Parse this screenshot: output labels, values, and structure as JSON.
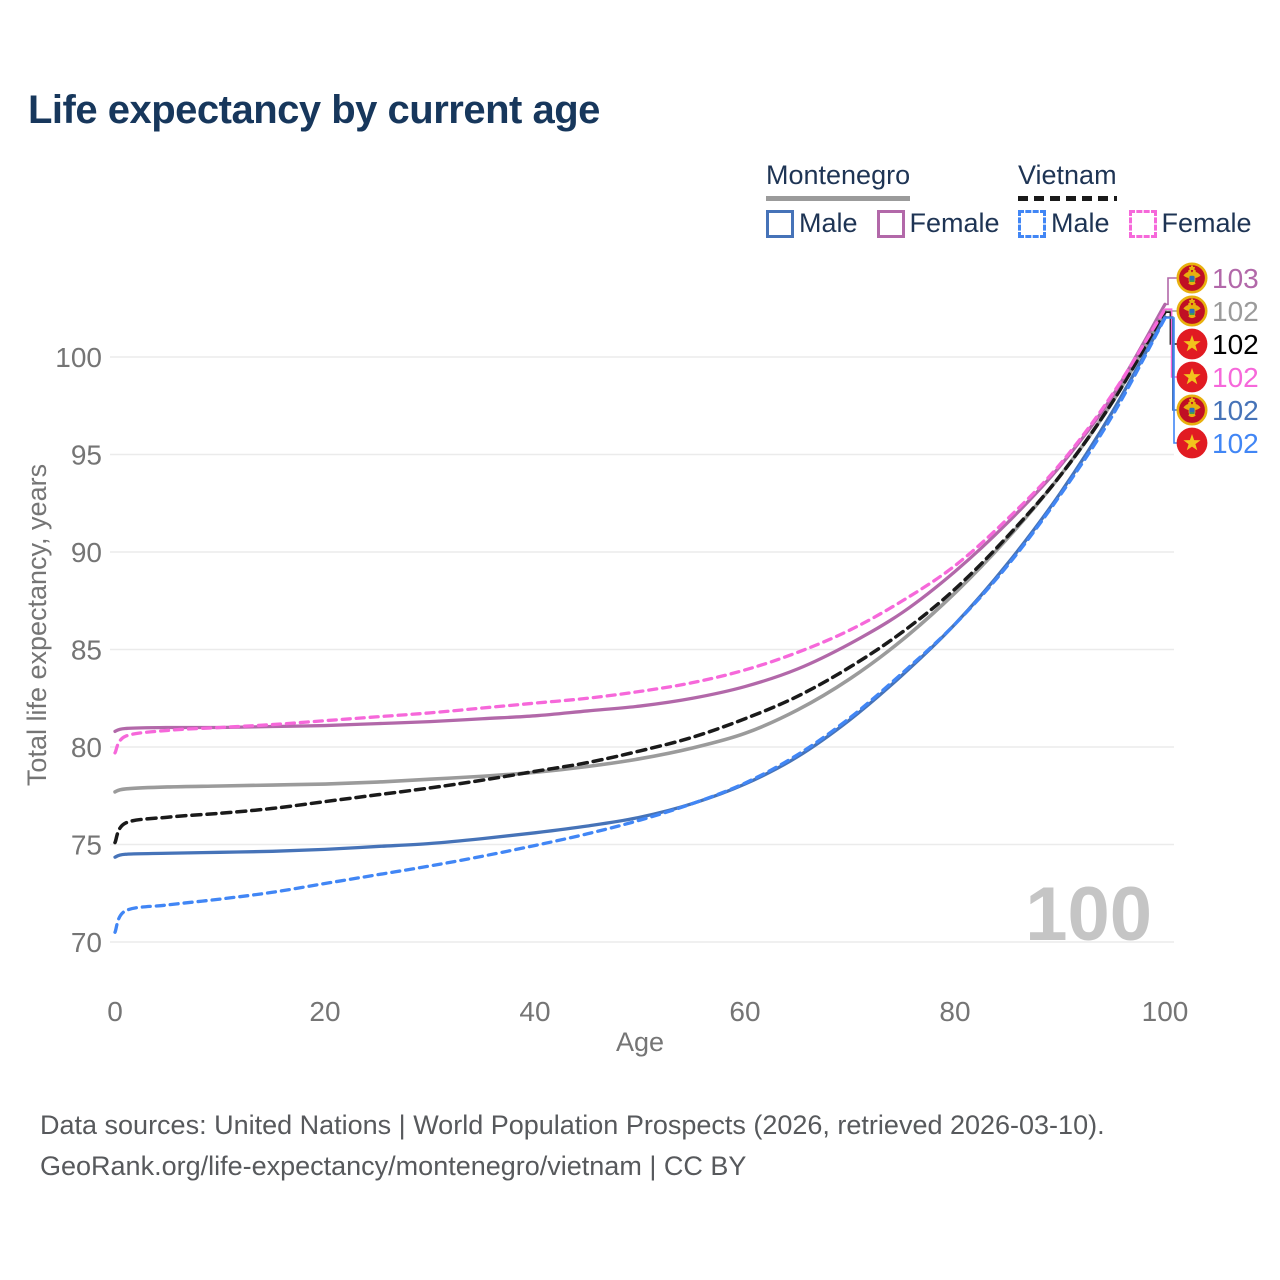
{
  "title": "Life expectancy by current age",
  "legend": {
    "groups": [
      {
        "label": "Montenegro",
        "line_style": "solid",
        "items": [
          {
            "label": "Male",
            "series": "mne_male"
          },
          {
            "label": "Female",
            "series": "mne_female"
          }
        ]
      },
      {
        "label": "Vietnam",
        "line_style": "dashed",
        "items": [
          {
            "label": "Male",
            "series": "vnm_male"
          },
          {
            "label": "Female",
            "series": "vnm_female"
          }
        ]
      }
    ]
  },
  "watermark": "100",
  "footer": {
    "line1": "Data sources: United Nations | World Population Prospects (2026, retrieved 2026-03-10).",
    "line2": "GeoRank.org/life-expectancy/montenegro/vietnam | CC BY"
  },
  "chart_data": {
    "type": "line",
    "title": "Life expectancy by current age",
    "xlabel": "Age",
    "ylabel": "Total life expectancy, years",
    "xlim": [
      0,
      100
    ],
    "ylim": [
      70,
      100
    ],
    "x_ticks": [
      0,
      20,
      40,
      60,
      80,
      100
    ],
    "y_ticks": [
      70,
      75,
      80,
      85,
      90,
      95,
      100
    ],
    "grid": "horizontal",
    "legend_position": "top-right",
    "colors": {
      "grid": "#ebebeb",
      "axis_text": "#757575",
      "watermark": "#c5c5c5",
      "vn_flag_red": "#e11b22",
      "vn_flag_gold": "#f2c41d",
      "me_flag_red": "#c00f24",
      "me_flag_gold": "#e8b00e"
    },
    "series": [
      {
        "id": "mne_total",
        "country": "Montenegro",
        "sex": "Both",
        "color": "#9b9b9b",
        "dash": null,
        "width": 3.6,
        "points": [
          [
            0,
            77.7
          ],
          [
            1,
            77.85
          ],
          [
            5,
            77.95
          ],
          [
            10,
            78.0
          ],
          [
            15,
            78.05
          ],
          [
            20,
            78.1
          ],
          [
            25,
            78.2
          ],
          [
            30,
            78.35
          ],
          [
            35,
            78.5
          ],
          [
            40,
            78.7
          ],
          [
            45,
            79.0
          ],
          [
            50,
            79.4
          ],
          [
            55,
            79.95
          ],
          [
            60,
            80.7
          ],
          [
            65,
            81.9
          ],
          [
            70,
            83.5
          ],
          [
            75,
            85.5
          ],
          [
            80,
            87.9
          ],
          [
            85,
            90.7
          ],
          [
            90,
            93.9
          ],
          [
            95,
            97.7
          ],
          [
            100,
            102.35
          ]
        ]
      },
      {
        "id": "vnm_total",
        "country": "Vietnam",
        "sex": "Both",
        "color": "#1a1a1a",
        "dash": "9 6",
        "width": 3.5,
        "points": [
          [
            0,
            75.1
          ],
          [
            1,
            76.1
          ],
          [
            5,
            76.4
          ],
          [
            10,
            76.6
          ],
          [
            15,
            76.85
          ],
          [
            20,
            77.2
          ],
          [
            25,
            77.55
          ],
          [
            30,
            77.9
          ],
          [
            35,
            78.3
          ],
          [
            40,
            78.75
          ],
          [
            45,
            79.2
          ],
          [
            50,
            79.8
          ],
          [
            55,
            80.5
          ],
          [
            60,
            81.45
          ],
          [
            65,
            82.6
          ],
          [
            70,
            84.1
          ],
          [
            75,
            85.9
          ],
          [
            80,
            88.1
          ],
          [
            85,
            90.8
          ],
          [
            90,
            93.9
          ],
          [
            95,
            97.7
          ],
          [
            100,
            102.3
          ]
        ]
      },
      {
        "id": "mne_female",
        "country": "Montenegro",
        "sex": "Female",
        "color": "#b268a9",
        "dash": null,
        "width": 3.3,
        "points": [
          [
            0,
            80.8
          ],
          [
            1,
            80.95
          ],
          [
            5,
            81.0
          ],
          [
            10,
            81.0
          ],
          [
            15,
            81.05
          ],
          [
            20,
            81.1
          ],
          [
            25,
            81.2
          ],
          [
            30,
            81.3
          ],
          [
            35,
            81.45
          ],
          [
            40,
            81.6
          ],
          [
            45,
            81.85
          ],
          [
            50,
            82.1
          ],
          [
            55,
            82.5
          ],
          [
            60,
            83.1
          ],
          [
            65,
            84.0
          ],
          [
            70,
            85.3
          ],
          [
            75,
            86.9
          ],
          [
            80,
            89.0
          ],
          [
            85,
            91.5
          ],
          [
            90,
            94.4
          ],
          [
            95,
            98.0
          ],
          [
            100,
            102.7
          ]
        ]
      },
      {
        "id": "vnm_female",
        "country": "Vietnam",
        "sex": "Female",
        "color": "#f668da",
        "dash": "8 6",
        "width": 3.3,
        "points": [
          [
            0,
            79.7
          ],
          [
            1,
            80.55
          ],
          [
            5,
            80.85
          ],
          [
            10,
            81.0
          ],
          [
            15,
            81.15
          ],
          [
            20,
            81.35
          ],
          [
            25,
            81.55
          ],
          [
            30,
            81.75
          ],
          [
            35,
            82.0
          ],
          [
            40,
            82.25
          ],
          [
            45,
            82.5
          ],
          [
            50,
            82.85
          ],
          [
            55,
            83.3
          ],
          [
            60,
            83.95
          ],
          [
            65,
            84.85
          ],
          [
            70,
            86.0
          ],
          [
            75,
            87.5
          ],
          [
            80,
            89.3
          ],
          [
            85,
            91.7
          ],
          [
            90,
            94.5
          ],
          [
            95,
            98.1
          ],
          [
            100,
            102.45
          ]
        ]
      },
      {
        "id": "mne_male",
        "country": "Montenegro",
        "sex": "Male",
        "color": "#4673b8",
        "dash": null,
        "width": 3.3,
        "points": [
          [
            0,
            74.35
          ],
          [
            1,
            74.5
          ],
          [
            5,
            74.55
          ],
          [
            10,
            74.6
          ],
          [
            15,
            74.65
          ],
          [
            20,
            74.75
          ],
          [
            25,
            74.9
          ],
          [
            30,
            75.05
          ],
          [
            35,
            75.3
          ],
          [
            40,
            75.6
          ],
          [
            45,
            75.95
          ],
          [
            50,
            76.4
          ],
          [
            55,
            77.1
          ],
          [
            60,
            78.1
          ],
          [
            65,
            79.5
          ],
          [
            70,
            81.4
          ],
          [
            75,
            83.7
          ],
          [
            80,
            86.3
          ],
          [
            85,
            89.4
          ],
          [
            90,
            93.0
          ],
          [
            95,
            97.2
          ],
          [
            100,
            102.05
          ]
        ]
      },
      {
        "id": "vnm_male",
        "country": "Vietnam",
        "sex": "Male",
        "color": "#4186f5",
        "dash": "8 6",
        "width": 3.3,
        "points": [
          [
            0,
            70.5
          ],
          [
            1,
            71.6
          ],
          [
            5,
            71.9
          ],
          [
            10,
            72.2
          ],
          [
            15,
            72.55
          ],
          [
            20,
            73.0
          ],
          [
            25,
            73.45
          ],
          [
            30,
            73.9
          ],
          [
            35,
            74.4
          ],
          [
            40,
            74.95
          ],
          [
            45,
            75.55
          ],
          [
            50,
            76.25
          ],
          [
            55,
            77.1
          ],
          [
            60,
            78.15
          ],
          [
            65,
            79.6
          ],
          [
            70,
            81.5
          ],
          [
            75,
            83.8
          ],
          [
            80,
            86.3
          ],
          [
            85,
            89.3
          ],
          [
            90,
            92.9
          ],
          [
            95,
            97.0
          ],
          [
            100,
            102.0
          ]
        ]
      }
    ],
    "end_labels": [
      {
        "series": "mne_total",
        "value": "102",
        "flag": "me",
        "order": 2
      },
      {
        "series": "vnm_total",
        "value": "102",
        "flag": "vn",
        "order": 3,
        "label_color": "#000000"
      },
      {
        "series": "mne_female",
        "value": "103",
        "flag": "me",
        "order": 1
      },
      {
        "series": "vnm_female",
        "value": "102",
        "flag": "vn",
        "order": 4
      },
      {
        "series": "mne_male",
        "value": "102",
        "flag": "me",
        "order": 5
      },
      {
        "series": "vnm_male",
        "value": "102",
        "flag": "vn",
        "order": 6
      }
    ]
  }
}
